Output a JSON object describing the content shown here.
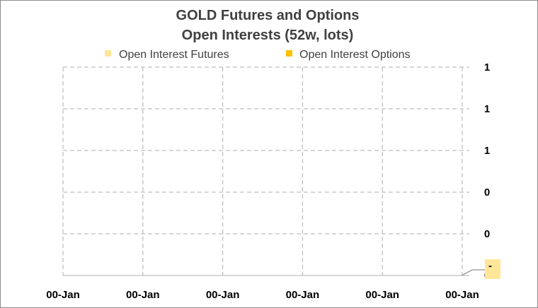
{
  "chart_data": {
    "type": "area",
    "title_lines": [
      "GOLD Futures and Options",
      "Open Interests (52w, lots)"
    ],
    "legend": {
      "placement": "top",
      "entries": [
        {
          "label": "Open Interest   Futures",
          "color": "#ffe699"
        },
        {
          "label": "Open Interest   Options",
          "color": "#ffc000"
        }
      ]
    },
    "x_tick_labels": [
      "00-Jan",
      "00-Jan",
      "00-Jan",
      "00-Jan",
      "00-Jan",
      "00-Jan"
    ],
    "y_tick_labels": [
      "1",
      "1",
      "1",
      "0",
      "0",
      "0"
    ],
    "y_axis_position": "right",
    "grid": true,
    "series": [
      {
        "name": "Open Interest   Futures",
        "values": []
      },
      {
        "name": "Open Interest   Options",
        "values": []
      }
    ],
    "last_value_label": "-",
    "last_value_label_bg": "#ffe699"
  }
}
